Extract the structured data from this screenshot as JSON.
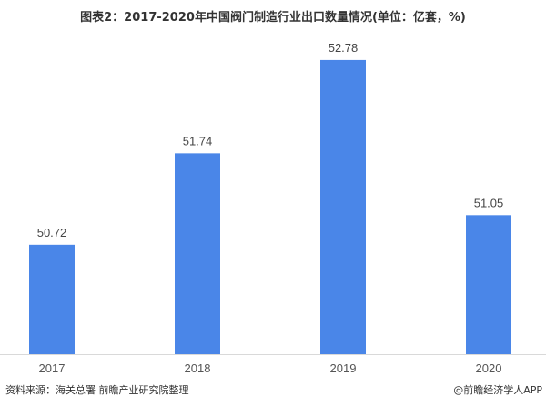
{
  "chart_data": {
    "type": "bar",
    "title": "图表2：2017-2020年中国阀门制造行业出口数量情况(单位：亿套，%)",
    "categories": [
      "2017",
      "2018",
      "2019",
      "2020"
    ],
    "values": [
      50.72,
      51.74,
      52.78,
      51.05
    ],
    "xlabel": "",
    "ylabel": "",
    "ylim": [
      49.5,
      53.0
    ],
    "grid": false,
    "bar_color": "#4a86e8"
  },
  "footer": {
    "source": "资料来源：海关总署 前瞻产业研究院整理",
    "credit": "@前瞻经济学人APP"
  }
}
